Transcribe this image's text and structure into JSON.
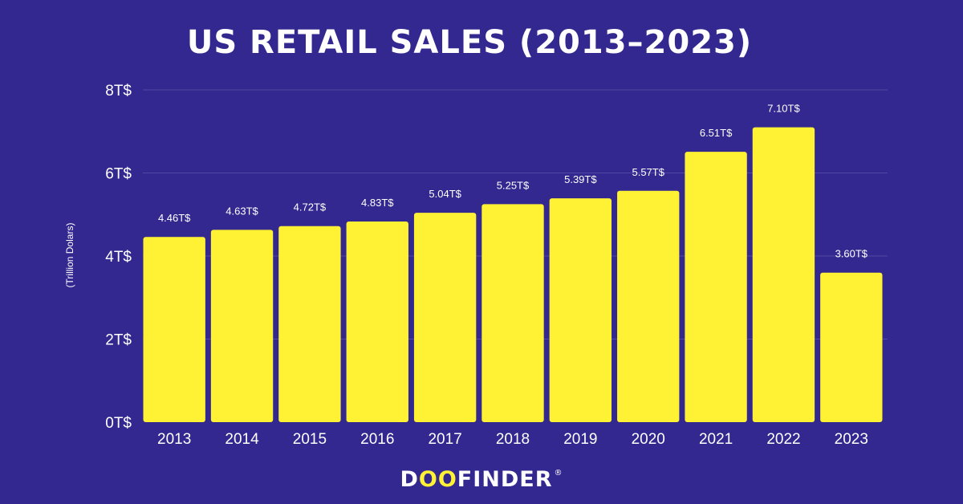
{
  "chart_data": {
    "type": "bar",
    "title": "US RETAIL SALES (2013–2023)",
    "xlabel": "",
    "ylabel": "(Trillion Dolars)",
    "ylim": [
      0,
      8
    ],
    "yticks": [
      0,
      2,
      4,
      6,
      8
    ],
    "ytick_labels": [
      "0T$",
      "2T$",
      "4T$",
      "6T$",
      "8T$"
    ],
    "grid": true,
    "categories": [
      "2013",
      "2014",
      "2015",
      "2016",
      "2017",
      "2018",
      "2019",
      "2020",
      "2021",
      "2022",
      "2023"
    ],
    "values": [
      4.46,
      4.63,
      4.72,
      4.83,
      5.04,
      5.25,
      5.39,
      5.57,
      6.51,
      7.1,
      3.6
    ],
    "data_labels": [
      "4.46T$",
      "4.63T$",
      "4.72T$",
      "4.83T$",
      "5.04T$",
      "5.25T$",
      "5.39T$",
      "5.57T$",
      "6.51T$",
      "7.10T$",
      "3.60T$"
    ],
    "colors": {
      "background": "#33288f",
      "bar": "#fff133",
      "grid": "#5047a6",
      "text": "#ffffff"
    }
  },
  "brand": {
    "pre": "D",
    "mid": "OO",
    "post": "FINDER",
    "mark": "®"
  }
}
